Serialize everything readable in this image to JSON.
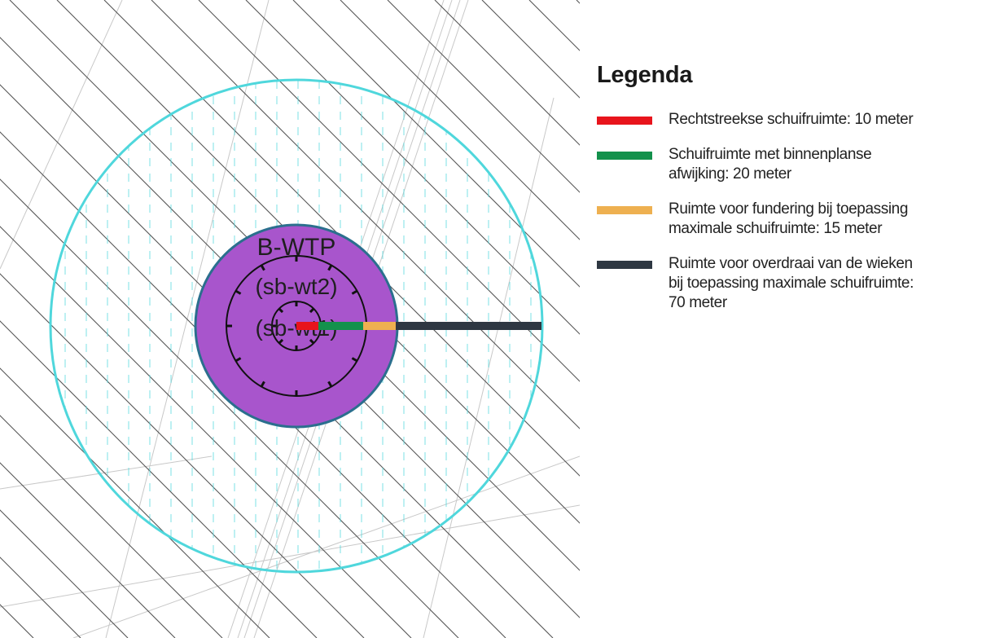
{
  "map": {
    "zone_label": "B-WTP",
    "inner_labels": [
      "(sb-wt2)",
      "(sb-wt1)"
    ],
    "colors": {
      "outer_circle": "#4fd7dc",
      "zone_fill": "#a855cc",
      "hatch": "#555555",
      "parcel_line": "#c8c8c8"
    }
  },
  "legend": {
    "title": "Legenda",
    "items": [
      {
        "label": "Rechtstreekse schuifruimte: 10 meter",
        "color": "#e8141c"
      },
      {
        "label": "Schuifruimte met binnenplanse\nafwijking: 20 meter",
        "color": "#13914c"
      },
      {
        "label": "Ruimte voor fundering bij toepassing\nmaximale schuifruimte: 15 meter",
        "color": "#eeb050"
      },
      {
        "label": "Ruimte voor overdraai van de wieken\nbij toepassing maximale schuifruimte:\n70 meter",
        "color": "#2e3742"
      }
    ]
  }
}
